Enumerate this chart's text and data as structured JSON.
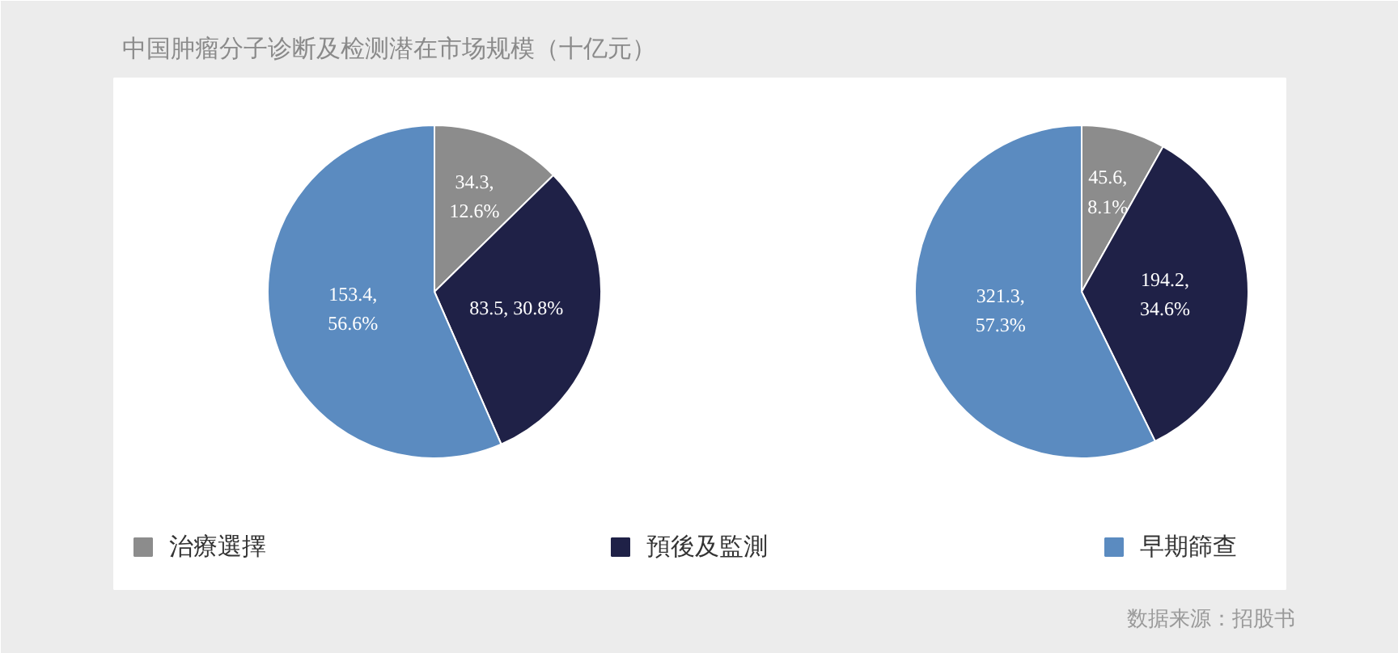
{
  "chart_data": [
    {
      "type": "pie",
      "title": "中国肿瘤分子诊断及检测潜在市场规模（十亿元）",
      "categories": [
        "治療選擇",
        "預後及監測",
        "早期篩查"
      ],
      "values": [
        34.3,
        83.5,
        153.4
      ],
      "colors": [
        "#8c8c8c",
        "#1f2147",
        "#5b8bc0"
      ],
      "value_labels": [
        "34.3,\n12.6%",
        "83.5, 30.8%",
        "153.4,\n56.6%"
      ],
      "legend": "bottom"
    },
    {
      "type": "pie",
      "categories": [
        null,
        null,
        null
      ],
      "values": [
        45.6,
        194.2,
        321.3
      ],
      "colors": [
        "#8c8c8c",
        "#1f2147",
        "#5b8bc0"
      ],
      "value_labels": [
        "45.6,\n8.1%",
        "194.2,\n34.6%",
        "321.3,\n57.3%"
      ],
      "annotations": [
        "数据来源：招股书"
      ]
    }
  ]
}
